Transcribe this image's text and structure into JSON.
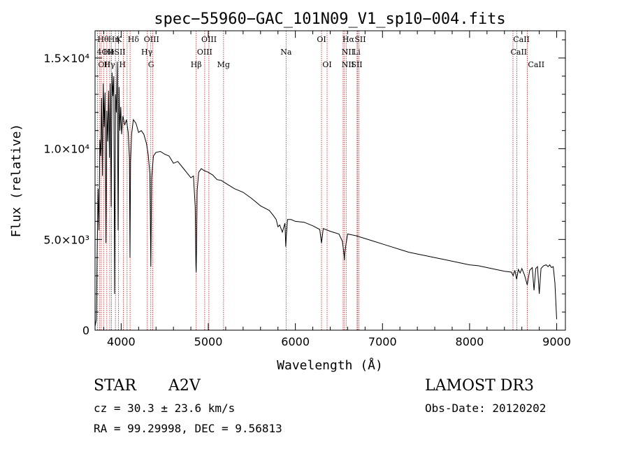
{
  "chart_data": {
    "type": "line",
    "title": "spec−55960−GAC_101N09_V1_sp10−004.fits",
    "xlabel": "Wavelength (Å)",
    "ylabel": "Flux (relative)",
    "xlim": [
      3700,
      9100
    ],
    "ylim": [
      0,
      16500
    ],
    "x_ticks": [
      {
        "value": 4000,
        "label": "4000"
      },
      {
        "value": 5000,
        "label": "5000"
      },
      {
        "value": 6000,
        "label": "6000"
      },
      {
        "value": 7000,
        "label": "7000"
      },
      {
        "value": 8000,
        "label": "8000"
      },
      {
        "value": 9000,
        "label": "9000"
      }
    ],
    "y_ticks": [
      {
        "value": 0,
        "label": "0"
      },
      {
        "value": 5000,
        "label": "5.0×10³"
      },
      {
        "value": 10000,
        "label": "1.0×10⁴"
      },
      {
        "value": 15000,
        "label": "1.5×10⁴"
      }
    ],
    "line_color": "#000000",
    "marker_color": "#b22222",
    "series": [
      {
        "name": "flux",
        "x": [
          3700,
          3715,
          3725,
          3735,
          3745,
          3755,
          3765,
          3775,
          3785,
          3795,
          3805,
          3815,
          3825,
          3835,
          3845,
          3855,
          3865,
          3875,
          3885,
          3895,
          3905,
          3915,
          3925,
          3935,
          3945,
          3955,
          3965,
          3975,
          3985,
          3995,
          4005,
          4020,
          4040,
          4060,
          4080,
          4095,
          4101,
          4108,
          4120,
          4140,
          4170,
          4200,
          4230,
          4260,
          4290,
          4310,
          4330,
          4340,
          4350,
          4370,
          4400,
          4450,
          4500,
          4550,
          4600,
          4650,
          4700,
          4750,
          4800,
          4830,
          4850,
          4858,
          4861,
          4864,
          4872,
          4890,
          4920,
          4950,
          5000,
          5050,
          5100,
          5150,
          5200,
          5300,
          5400,
          5500,
          5600,
          5700,
          5750,
          5780,
          5800,
          5820,
          5850,
          5880,
          5890,
          5896,
          5910,
          5950,
          6000,
          6100,
          6200,
          6280,
          6300,
          6320,
          6400,
          6500,
          6540,
          6560,
          6563,
          6566,
          6580,
          6600,
          6700,
          6800,
          6900,
          7000,
          7100,
          7200,
          7300,
          7400,
          7500,
          7600,
          7700,
          7800,
          7900,
          8000,
          8100,
          8200,
          8300,
          8400,
          8480,
          8500,
          8520,
          8540,
          8560,
          8580,
          8600,
          8630,
          8662,
          8690,
          8720,
          8740,
          8760,
          8780,
          8800,
          8820,
          8850,
          8880,
          8900,
          8920,
          8940,
          8960,
          8980,
          9000
        ],
        "y": [
          200,
          600,
          4500,
          7800,
          5500,
          10500,
          9600,
          12800,
          8500,
          13600,
          11200,
          13100,
          4800,
          12100,
          10400,
          13200,
          9500,
          13600,
          6800,
          14200,
          12900,
          14000,
          2000,
          13000,
          12000,
          14800,
          5500,
          13400,
          11000,
          12300,
          10800,
          11800,
          11300,
          11600,
          10900,
          9500,
          4000,
          9300,
          10800,
          11600,
          11400,
          10900,
          11000,
          10800,
          10300,
          9700,
          8600,
          3500,
          8400,
          9600,
          9800,
          9850,
          9700,
          9600,
          9200,
          9300,
          9000,
          8700,
          8400,
          8500,
          6800,
          3600,
          3200,
          4200,
          7700,
          8700,
          8900,
          8800,
          8700,
          8550,
          8300,
          8250,
          8100,
          7800,
          7600,
          7250,
          6850,
          6600,
          6300,
          6100,
          5700,
          5800,
          5400,
          5900,
          4600,
          5200,
          6100,
          6100,
          6000,
          5950,
          5750,
          5550,
          4800,
          5600,
          5450,
          5300,
          4900,
          4100,
          3850,
          4200,
          4700,
          5300,
          5200,
          5050,
          4900,
          4750,
          4600,
          4450,
          4300,
          4200,
          4100,
          4000,
          3900,
          3800,
          3700,
          3600,
          3550,
          3450,
          3350,
          3250,
          3200,
          3000,
          3300,
          2800,
          3350,
          3150,
          3400,
          3050,
          2500,
          3300,
          3450,
          2200,
          3400,
          3500,
          2000,
          3400,
          3550,
          3600,
          3500,
          3600,
          3450,
          3500,
          2600,
          600
        ]
      }
    ],
    "lines": [
      {
        "wavelength": 3727,
        "label": "OII",
        "row": 2,
        "anchor": "start"
      },
      {
        "wavelength": 3750,
        "label": "",
        "row": 0,
        "anchor": "start"
      },
      {
        "wavelength": 3770,
        "label": "",
        "row": 0,
        "anchor": "start"
      },
      {
        "wavelength": 3798,
        "label": "",
        "row": 0,
        "anchor": "start"
      },
      {
        "wavelength": 3835,
        "label": "",
        "row": 0,
        "anchor": "start"
      },
      {
        "wavelength": 3869,
        "label": "",
        "row": 0,
        "anchor": "start"
      },
      {
        "wavelength": 3889,
        "label": "",
        "row": 0,
        "anchor": "start"
      },
      {
        "wavelength": 3934,
        "label": "K",
        "row": 0,
        "anchor": "start"
      },
      {
        "wavelength": 3969,
        "label": "H",
        "row": 2,
        "anchor": "start"
      },
      {
        "wavelength": 4026,
        "label": "",
        "row": 0,
        "anchor": "start"
      },
      {
        "wavelength": 4068,
        "label": "",
        "row": 0,
        "anchor": "start"
      },
      {
        "wavelength": 4102,
        "label": "",
        "row": 0,
        "anchor": "start"
      },
      {
        "wavelength": 4300,
        "label": "G",
        "row": 2,
        "anchor": "start"
      },
      {
        "wavelength": 4340,
        "label": "",
        "row": 0,
        "anchor": "start"
      },
      {
        "wavelength": 4363,
        "label": "",
        "row": 0,
        "anchor": "start"
      },
      {
        "wavelength": 4861,
        "label": "Hβ",
        "row": 2,
        "anchor": "middle"
      },
      {
        "wavelength": 4959,
        "label": "",
        "row": 0,
        "anchor": "start"
      },
      {
        "wavelength": 5007,
        "label": "",
        "row": 0,
        "anchor": "start"
      },
      {
        "wavelength": 5175,
        "label": "Mg",
        "row": 2,
        "anchor": "middle"
      },
      {
        "wavelength": 5893,
        "label": "Na",
        "row": 1,
        "anchor": "middle"
      },
      {
        "wavelength": 6300,
        "label": "OI",
        "row": 0,
        "anchor": "middle"
      },
      {
        "wavelength": 6364,
        "label": "OI",
        "row": 2,
        "anchor": "middle"
      },
      {
        "wavelength": 6548,
        "label": "",
        "row": 0,
        "anchor": "start"
      },
      {
        "wavelength": 6563,
        "label": "",
        "row": 0,
        "anchor": "start"
      },
      {
        "wavelength": 6583,
        "label": "",
        "row": 0,
        "anchor": "start"
      },
      {
        "wavelength": 6708,
        "label": "",
        "row": 0,
        "anchor": "start"
      },
      {
        "wavelength": 6716,
        "label": "",
        "row": 0,
        "anchor": "start"
      },
      {
        "wavelength": 6731,
        "label": "",
        "row": 0,
        "anchor": "start"
      },
      {
        "wavelength": 8498,
        "label": "",
        "row": 0,
        "anchor": "start"
      },
      {
        "wavelength": 8542,
        "label": "",
        "row": 0,
        "anchor": "start"
      },
      {
        "wavelength": 8662,
        "label": "CaII",
        "row": 2,
        "anchor": "start"
      }
    ],
    "line_labels": [
      {
        "wavelength": 3727,
        "label": "Hθ",
        "row": 0,
        "anchor": "start"
      },
      {
        "wavelength": 3850,
        "label": "Hη",
        "row": 0,
        "anchor": "start"
      },
      {
        "wavelength": 4075,
        "label": "Hδ",
        "row": 0,
        "anchor": "start"
      },
      {
        "wavelength": 4260,
        "label": "OIII",
        "row": 0,
        "anchor": "start"
      },
      {
        "wavelength": 4920,
        "label": "OIII",
        "row": 0,
        "anchor": "start"
      },
      {
        "wavelength": 6540,
        "label": "Hα",
        "row": 0,
        "anchor": "start"
      },
      {
        "wavelength": 6680,
        "label": "SII",
        "row": 0,
        "anchor": "start"
      },
      {
        "wavelength": 8500,
        "label": "CaII",
        "row": 0,
        "anchor": "start"
      },
      {
        "wavelength": 3720,
        "label": "4OII",
        "row": 1,
        "anchor": "start"
      },
      {
        "wavelength": 3795,
        "label": "He",
        "row": 1,
        "anchor": "start"
      },
      {
        "wavelength": 3880,
        "label": "I",
        "row": 1,
        "anchor": "start"
      },
      {
        "wavelength": 3920,
        "label": "SII",
        "row": 1,
        "anchor": "start"
      },
      {
        "wavelength": 4230,
        "label": "Hγ",
        "row": 1,
        "anchor": "start"
      },
      {
        "wavelength": 4870,
        "label": "OIII",
        "row": 1,
        "anchor": "start"
      },
      {
        "wavelength": 6530,
        "label": "NII",
        "row": 1,
        "anchor": "start"
      },
      {
        "wavelength": 6660,
        "label": "Li",
        "row": 1,
        "anchor": "start"
      },
      {
        "wavelength": 8470,
        "label": "CaII",
        "row": 1,
        "anchor": "start"
      },
      {
        "wavelength": 3800,
        "label": "Hγ",
        "row": 2,
        "anchor": "start"
      },
      {
        "wavelength": 6530,
        "label": "NII",
        "row": 2,
        "anchor": "start"
      },
      {
        "wavelength": 6640,
        "label": "SII",
        "row": 2,
        "anchor": "start"
      }
    ]
  },
  "info": {
    "object_class": "STAR",
    "subclass": "A2V",
    "survey": "LAMOST DR3",
    "cz": "cz = 30.3 ± 23.6 km/s",
    "obs_date": "Obs-Date: 20120202",
    "coords": "RA =  99.29998, DEC =   9.56813"
  }
}
